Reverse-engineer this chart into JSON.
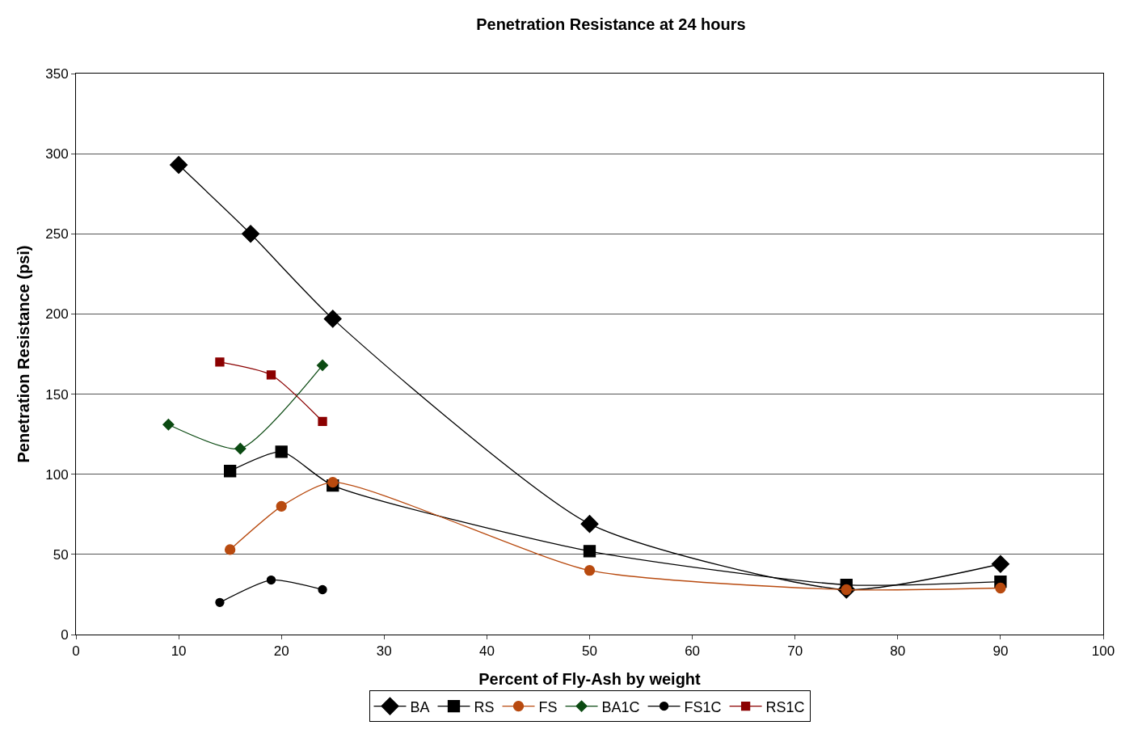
{
  "chart_data": {
    "type": "line",
    "title": "Penetration Resistance at 24 hours",
    "xlabel": "Percent of Fly-Ash by weight",
    "ylabel": "Penetration Resistance (psi)",
    "xlim": [
      0,
      100
    ],
    "xticks": [
      0,
      10,
      20,
      30,
      40,
      50,
      60,
      70,
      80,
      90,
      100
    ],
    "ylim": [
      0,
      350
    ],
    "yticks": [
      0,
      50,
      100,
      150,
      200,
      250,
      300,
      350
    ],
    "grid": "y",
    "legend": "bottom",
    "line_style": "solid",
    "series": [
      {
        "name": "BA",
        "color": "#000000",
        "marker": "diamond",
        "x": [
          10,
          17,
          25,
          50,
          75,
          90
        ],
        "values": [
          293,
          250,
          197,
          69,
          28,
          44
        ]
      },
      {
        "name": "RS",
        "color": "#000000",
        "marker": "square",
        "x": [
          15,
          20,
          25,
          50,
          75,
          90
        ],
        "values": [
          102,
          114,
          93,
          52,
          31,
          33
        ]
      },
      {
        "name": "FS",
        "color": "#b84a0f",
        "marker": "circle",
        "x": [
          15,
          20,
          25,
          50,
          75,
          90
        ],
        "values": [
          53,
          80,
          95,
          40,
          28,
          29
        ]
      },
      {
        "name": "BA1C",
        "color": "#0b4a12",
        "marker": "diamond",
        "x": [
          9,
          16,
          24
        ],
        "values": [
          131,
          116,
          168
        ]
      },
      {
        "name": "FS1C",
        "color": "#000000",
        "marker": "circle",
        "x": [
          14,
          19,
          24
        ],
        "values": [
          20,
          34,
          28
        ]
      },
      {
        "name": "RS1C",
        "color": "#8b0000",
        "marker": "square",
        "x": [
          14,
          19,
          24
        ],
        "values": [
          170,
          162,
          133
        ]
      }
    ]
  }
}
